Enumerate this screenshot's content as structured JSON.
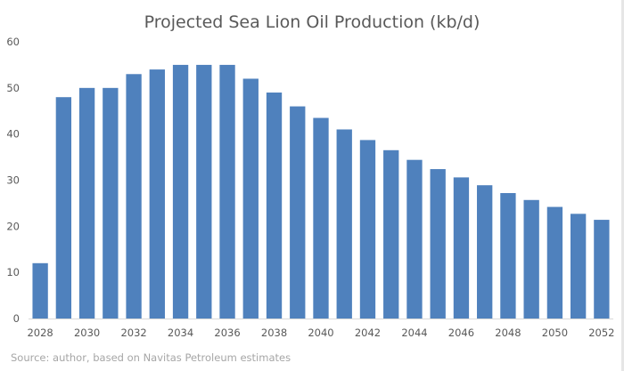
{
  "chart_data": {
    "type": "bar",
    "title": "Projected Sea Lion Oil Production (kb/d)",
    "xlabel": "",
    "ylabel": "",
    "ylim": [
      0,
      60
    ],
    "yticks": [
      0,
      10,
      20,
      30,
      40,
      50,
      60
    ],
    "categories": [
      "2028",
      "2029",
      "2030",
      "2031",
      "2032",
      "2033",
      "2034",
      "2035",
      "2036",
      "2037",
      "2038",
      "2039",
      "2040",
      "2041",
      "2042",
      "2043",
      "2044",
      "2045",
      "2046",
      "2047",
      "2048",
      "2049",
      "2050",
      "2051",
      "2052"
    ],
    "xtick_labels": [
      "2028",
      "2030",
      "2032",
      "2034",
      "2036",
      "2038",
      "2040",
      "2042",
      "2044",
      "2046",
      "2048",
      "2050",
      "2052"
    ],
    "values": [
      12,
      48,
      50,
      50,
      53,
      54,
      55,
      55,
      55,
      52,
      49,
      46,
      43.5,
      41,
      38.7,
      36.5,
      34.4,
      32.4,
      30.6,
      28.9,
      27.2,
      25.7,
      24.2,
      22.7,
      21.4
    ],
    "bar_color": "#4f81bd",
    "grid": false,
    "legend": "none"
  },
  "source": "Source: author, based on Navitas Petroleum estimates"
}
